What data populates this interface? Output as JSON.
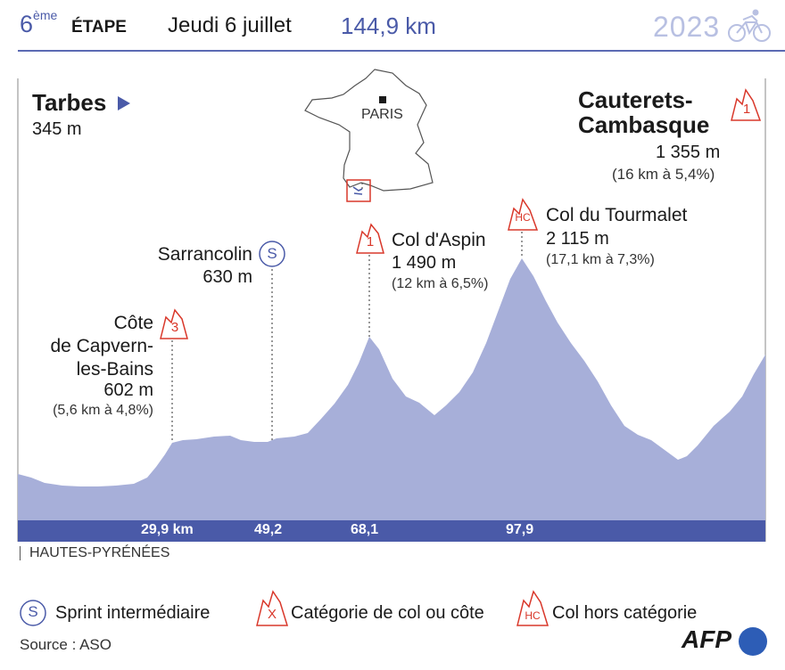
{
  "header": {
    "stage_number": "6",
    "stage_suffix": "ème",
    "stage_word": "ÉTAPE",
    "date": "Jeudi 6 juillet",
    "distance": "144,9 km",
    "year": "2023"
  },
  "map": {
    "city": "PARIS"
  },
  "start": {
    "name": "Tarbes",
    "altitude": "345 m"
  },
  "finish": {
    "name_line1": "Cauterets-",
    "name_line2": "Cambasque",
    "altitude": "1 355 m",
    "detail": "(16 km à 5,4%)",
    "category": "1"
  },
  "points": [
    {
      "name_line1": "Côte",
      "name_line2": "de Capvern-",
      "name_line3": "les-Bains",
      "altitude": "602 m",
      "detail": "(5,6 km à 4,8%)",
      "category": "3",
      "km": "29,9 km"
    },
    {
      "name": "Sarrancolin",
      "altitude": "630 m",
      "category": "S",
      "km": "49,2"
    },
    {
      "name": "Col d'Aspin",
      "altitude": "1 490 m",
      "detail": "(12 km à 6,5%)",
      "category": "1",
      "km": "68,1"
    },
    {
      "name": "Col du Tourmalet",
      "altitude": "2 115 m",
      "detail": "(17,1 km à 7,3%)",
      "category": "HC",
      "km": "97,9"
    }
  ],
  "region": "HAUTES-PYRÉNÉES",
  "legend": {
    "sprint_symbol": "S",
    "sprint_label": "Sprint intermédiaire",
    "category_symbol": "X",
    "category_label": "Catégorie de col ou côte",
    "hc_symbol": "HC",
    "hc_label": "Col hors catégorie"
  },
  "source": "Source : ASO",
  "logo": "AFP",
  "colors": {
    "profile_fill": "#a7afd9",
    "axis_bar": "#4a5aa8",
    "accent_blue": "#4a5aa8",
    "climb_red": "#d9382b"
  }
}
